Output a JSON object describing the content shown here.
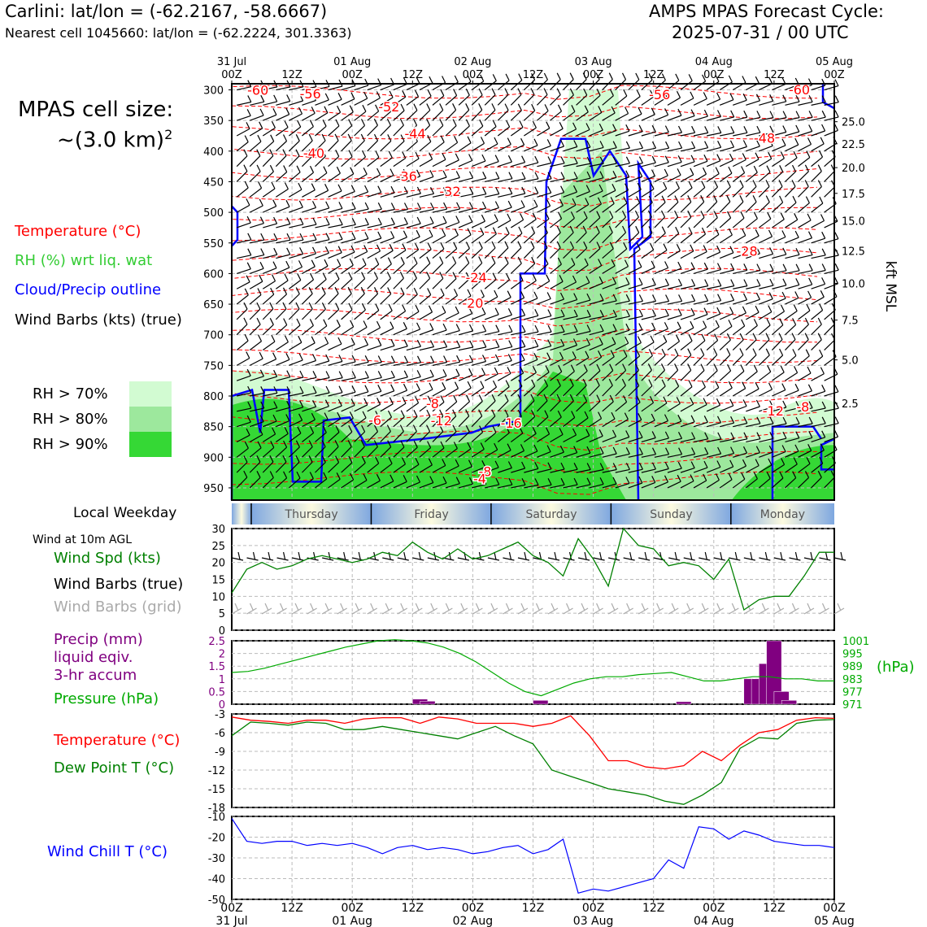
{
  "header": {
    "title": "Carlini: lat/lon = (-62.2167, -58.6667)",
    "subtitle": "Nearest cell 1045660: lat/lon = (-62.2224, 301.3363)",
    "cycle_line1": "AMPS MPAS Forecast Cycle:",
    "cycle_line2": "2025-07-31 / 00 UTC"
  },
  "sidebar": {
    "cell_size_line1": "MPAS cell size:",
    "cell_size_line2": "~(3.0 km)",
    "cell_size_exp": "2",
    "legend": {
      "temperature": "Temperature (°C)",
      "rh": "RH (%) wrt liq. wat",
      "cloud": "Cloud/Precip outline",
      "wind": "Wind Barbs (kts) (true)"
    },
    "rh_levels": [
      {
        "label": "RH > 70%",
        "color": "#d2fbd2"
      },
      {
        "label": "RH > 80%",
        "color": "#9de89d"
      },
      {
        "label": "RH > 90%",
        "color": "#35d835"
      }
    ],
    "local_weekday": "Local Weekday",
    "wind10m": "Wind at 10m AGL",
    "wind_spd": "Wind Spd (kts)",
    "wind_barbs_true": "Wind Barbs (true)",
    "wind_barbs_grid": "Wind Barbs (grid)",
    "precip1": "Precip (mm)",
    "precip2": "liquid eqiv.",
    "precip3": "3-hr accum",
    "pressure": "Pressure (hPa)",
    "temp": "Temperature (°C)",
    "dewpoint": "Dew Point T (°C)",
    "windchill": "Wind Chill T (°C)"
  },
  "colors": {
    "temperature": "#ff0000",
    "rh_text": "#33cc33",
    "cloud": "#0000ff",
    "wind_speed": "#008000",
    "grid_barb": "#aaaaaa",
    "precip": "#800080",
    "pressure": "#00aa00",
    "dewpoint": "#008000",
    "windchill": "#0000ff"
  },
  "chart_data": [
    {
      "type": "cross-section",
      "x_top_ticks": [
        [
          "31 Jul",
          "00Z"
        ],
        [
          "",
          "12Z"
        ],
        [
          "01 Aug",
          "00Z"
        ],
        [
          "",
          "12Z"
        ],
        [
          "02 Aug",
          "00Z"
        ],
        [
          "",
          "12Z"
        ],
        [
          "03 Aug",
          "00Z"
        ],
        [
          "",
          "12Z"
        ],
        [
          "04 Aug",
          "00Z"
        ],
        [
          "",
          "12Z"
        ],
        [
          "05 Aug",
          "00Z"
        ]
      ],
      "pressure_levels": [
        300,
        350,
        400,
        450,
        500,
        550,
        600,
        650,
        700,
        750,
        800,
        850,
        900,
        950
      ],
      "ylim": [
        290,
        970
      ],
      "height_label": "kft MSL",
      "height_ticks": [
        {
          "p": 352,
          "label": "25.0"
        },
        {
          "p": 388,
          "label": "22.5"
        },
        {
          "p": 427,
          "label": "20.0"
        },
        {
          "p": 469,
          "label": "17.5"
        },
        {
          "p": 514,
          "label": "15.0"
        },
        {
          "p": 563,
          "label": "12.5"
        },
        {
          "p": 616,
          "label": "10.0"
        },
        {
          "p": 676,
          "label": "7.5"
        },
        {
          "p": 741,
          "label": "5.0"
        },
        {
          "p": 812,
          "label": "2.5"
        }
      ],
      "temperature_labels": [
        {
          "t": 0.15,
          "p": 300,
          "text": "-60"
        },
        {
          "t": 0.45,
          "p": 306,
          "text": "-56"
        },
        {
          "t": 0.9,
          "p": 327,
          "text": "-52"
        },
        {
          "t": 1.05,
          "p": 371,
          "text": "-44"
        },
        {
          "t": 0.47,
          "p": 403,
          "text": "-40"
        },
        {
          "t": 1.0,
          "p": 441,
          "text": "-36"
        },
        {
          "t": 1.25,
          "p": 465,
          "text": "-32"
        },
        {
          "t": 2.45,
          "p": 307,
          "text": "-56"
        },
        {
          "t": 3.25,
          "p": 299,
          "text": "-60"
        },
        {
          "t": 3.05,
          "p": 378,
          "text": "-48"
        },
        {
          "t": 2.95,
          "p": 563,
          "text": "-28"
        },
        {
          "t": 1.4,
          "p": 606,
          "text": "-24"
        },
        {
          "t": 1.38,
          "p": 648,
          "text": "-20"
        },
        {
          "t": 1.6,
          "p": 844,
          "text": "-16"
        },
        {
          "t": 1.2,
          "p": 840,
          "text": "-12"
        },
        {
          "t": 1.15,
          "p": 812,
          "text": "-8"
        },
        {
          "t": 0.82,
          "p": 839,
          "text": "-6"
        },
        {
          "t": 3.1,
          "p": 824,
          "text": "-12"
        },
        {
          "t": 3.27,
          "p": 817,
          "text": "-8"
        },
        {
          "t": 1.45,
          "p": 923,
          "text": "-8"
        },
        {
          "t": 1.42,
          "p": 935,
          "text": "-4"
        }
      ]
    },
    {
      "type": "line",
      "title": "Wind Spd (kts)",
      "ylim": [
        0,
        30
      ],
      "yticks": [
        0,
        5,
        10,
        15,
        20,
        25,
        30
      ],
      "x_hours": [
        0,
        6,
        12,
        18,
        24,
        30,
        36,
        42,
        48,
        54,
        60,
        66,
        72,
        78,
        84,
        90,
        96,
        102,
        108,
        114,
        120,
        126,
        132,
        138,
        144,
        150,
        156,
        162,
        168,
        174,
        180,
        186,
        192,
        198,
        204,
        210,
        216,
        222,
        228,
        234,
        240
      ],
      "x_hours_note": "",
      "wind_speed": [
        11,
        18,
        20,
        18,
        19,
        21,
        22,
        21,
        20,
        21,
        23,
        22,
        26,
        23,
        21,
        24,
        21,
        22,
        24,
        26,
        22,
        20,
        16,
        27,
        21,
        13,
        30,
        25,
        24,
        19,
        20,
        19,
        15,
        21,
        6,
        9,
        10,
        10,
        16,
        23,
        23
      ]
    },
    {
      "type": "bar+line",
      "precip_ylim": [
        0,
        2.5
      ],
      "precip_yticks": [
        0,
        0.5,
        1.0,
        1.5,
        2.0,
        2.5
      ],
      "precip_3h_mm": [
        0,
        0,
        0,
        0,
        0,
        0,
        0,
        0,
        0,
        0,
        0,
        0,
        0,
        0,
        0,
        0,
        0,
        0,
        0,
        0,
        0,
        0,
        0,
        0,
        0.2,
        0.12,
        0,
        0,
        0,
        0,
        0,
        0,
        0,
        0,
        0,
        0,
        0,
        0,
        0,
        0,
        0.15,
        0,
        0,
        0,
        0,
        0,
        0,
        0,
        0,
        0,
        0,
        0,
        0,
        0,
        0,
        0,
        0,
        0,
        0,
        0.1,
        0,
        0,
        0,
        0,
        0,
        0,
        0,
        0,
        1.0,
        1.0,
        1.6,
        2.5,
        0.5,
        0.15,
        0,
        0,
        0,
        0,
        0,
        0,
        0,
        0
      ],
      "pressure_ylim": [
        971,
        1001
      ],
      "pressure_yticks": [
        971,
        977,
        983,
        989,
        995,
        1001
      ],
      "pressure_unit": "(hPa)",
      "pressure_hpa": [
        986,
        986.5,
        988,
        990,
        992,
        994,
        996,
        998,
        999.5,
        1001,
        1001.5,
        1001,
        1000,
        998,
        995,
        991,
        986,
        981,
        977,
        975,
        978,
        981,
        983,
        984,
        984,
        985,
        985.5,
        986,
        984,
        982,
        982,
        983,
        984,
        984,
        983,
        983,
        982,
        982
      ]
    },
    {
      "type": "line",
      "ylim": [
        -18,
        -3
      ],
      "yticks": [
        -3,
        -6,
        -9,
        -12,
        -15,
        -18
      ],
      "temperature": [
        -3.5,
        -4,
        -4.2,
        -4.5,
        -4,
        -4,
        -4.5,
        -3.8,
        -3.6,
        -3.6,
        -4.5,
        -3.5,
        -3.8,
        -4.5,
        -4.5,
        -4.5,
        -5,
        -4.5,
        -3.3,
        -6.5,
        -10.5,
        -10.5,
        -11.5,
        -11.8,
        -11.3,
        -9,
        -10.5,
        -8,
        -6,
        -5.5,
        -4,
        -3.6,
        -3.7
      ],
      "dewpoint": [
        -6.5,
        -4.3,
        -4.5,
        -4.8,
        -4.3,
        -4.5,
        -5.5,
        -5.5,
        -5,
        -5.5,
        -6,
        -6.5,
        -7,
        -6,
        -5,
        -6.5,
        -7.8,
        -12,
        -13,
        -14,
        -15,
        -15.5,
        -16,
        -17,
        -17.5,
        -16,
        -14,
        -8.5,
        -6.8,
        -7,
        -4.5,
        -4,
        -3.9
      ],
      "x_hours": [
        0,
        6,
        12,
        18,
        24,
        30,
        36,
        42,
        48,
        54,
        60,
        66,
        72,
        78,
        84,
        90,
        96,
        102,
        108,
        114,
        120,
        126,
        132,
        138,
        144,
        150,
        156,
        162,
        168,
        174,
        180,
        186,
        192
      ]
    },
    {
      "type": "line",
      "ylim": [
        -50,
        -10
      ],
      "yticks": [
        -10,
        -20,
        -30,
        -40,
        -50
      ],
      "x_hours": [
        0,
        6,
        12,
        18,
        24,
        30,
        36,
        42,
        48,
        54,
        60,
        66,
        72,
        78,
        84,
        90,
        96,
        102,
        108,
        114,
        120,
        126,
        132,
        138,
        144,
        150,
        156,
        162,
        168,
        174,
        180,
        186,
        192,
        198,
        204,
        210,
        216,
        222,
        228,
        234,
        240
      ],
      "wind_chill": [
        -11,
        -22,
        -23,
        -22,
        -22,
        -24,
        -23,
        -24,
        -23,
        -25,
        -28,
        -25,
        -24,
        -26,
        -25,
        -26,
        -28,
        -27,
        -25,
        -24,
        -28,
        -26,
        -21,
        -47,
        -45,
        -46,
        -44,
        -42,
        -40,
        -31,
        -35,
        -15,
        -16,
        -21,
        -17,
        -19,
        -22,
        -23,
        -24,
        -24,
        -25
      ],
      "x_bottom_ticks": [
        [
          "00Z",
          "31 Jul"
        ],
        [
          "12Z",
          ""
        ],
        [
          "00Z",
          "01 Aug"
        ],
        [
          "12Z",
          ""
        ],
        [
          "00Z",
          "02 Aug"
        ],
        [
          "12Z",
          ""
        ],
        [
          "00Z",
          "03 Aug"
        ],
        [
          "12Z",
          ""
        ],
        [
          "00Z",
          "04 Aug"
        ],
        [
          "12Z",
          ""
        ],
        [
          "00Z",
          "05 Aug"
        ]
      ]
    }
  ],
  "weekdays": [
    "Thursday",
    "Friday",
    "Saturday",
    "Sunday",
    "Monday"
  ]
}
